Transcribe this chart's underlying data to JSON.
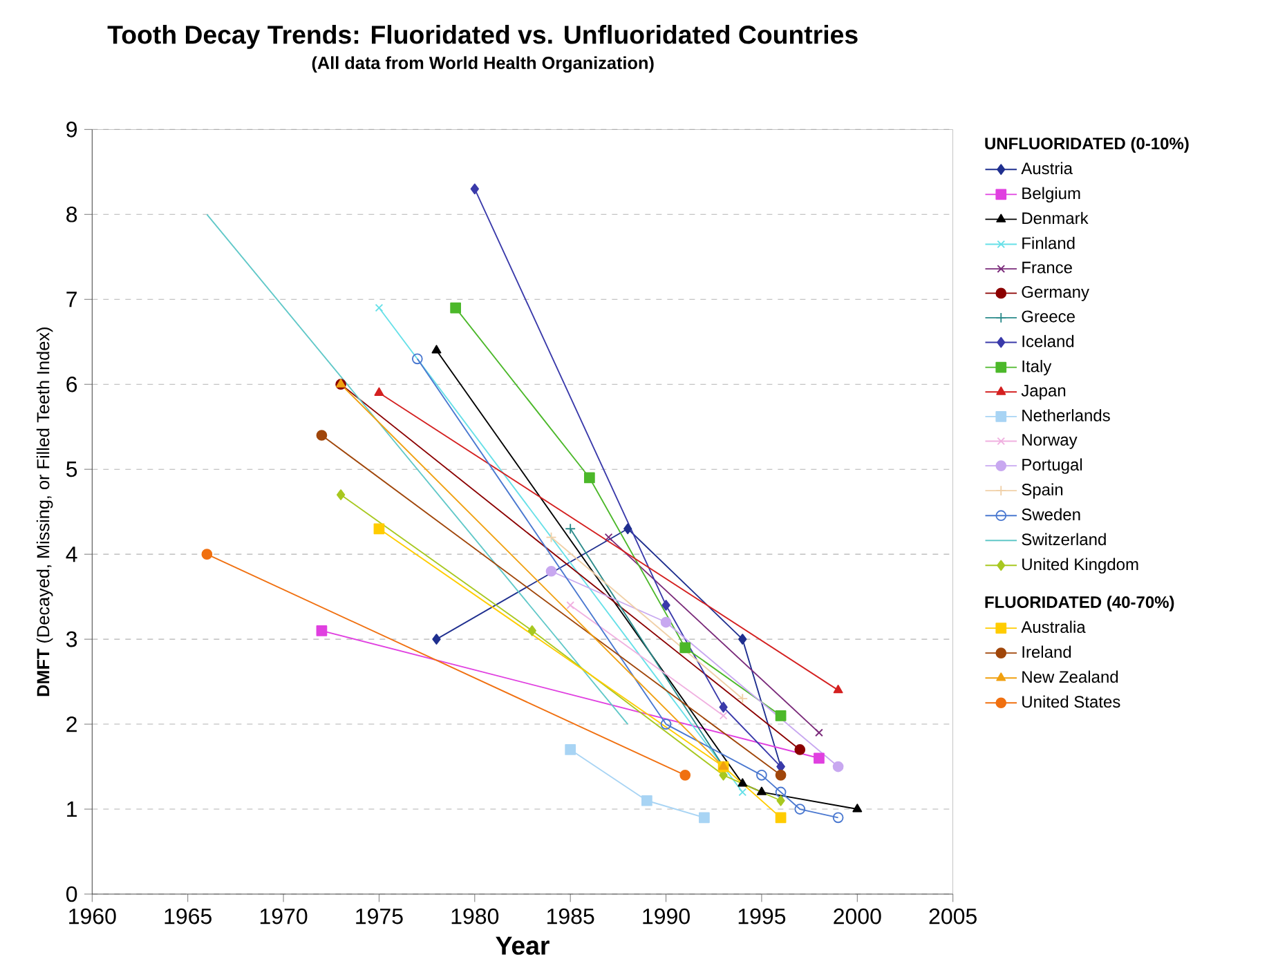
{
  "chart_data": {
    "type": "line",
    "title": "Tooth Decay Trends:  Fluoridated vs. Unfluoridated Countries",
    "subtitle": "(All data from World Health Organization)",
    "xlabel": "Year",
    "ylabel": "**DMFT** (Decayed, Missing, or Filled Teeth Index)",
    "legend_title": "UNFLUORIDATED (0-10%)",
    "annotations": [
      "FLUORIDATED (40-70%)"
    ],
    "xlim": [
      1960,
      2005
    ],
    "ylim": [
      0,
      9
    ],
    "xticks": [
      1960,
      1965,
      1970,
      1975,
      1980,
      1985,
      1990,
      1995,
      2000,
      2005
    ],
    "yticks": [
      0,
      1,
      2,
      3,
      4,
      5,
      6,
      7,
      8,
      9
    ],
    "grid": "y",
    "legend": "right",
    "series": [
      {
        "name": "Austria",
        "color": "#1f2f8f",
        "marker": "diamond",
        "x": [
          1978,
          1988,
          1994,
          1996
        ],
        "values": [
          3.0,
          4.3,
          3.0,
          1.5
        ]
      },
      {
        "name": "Belgium",
        "color": "#e040e0",
        "marker": "square",
        "x": [
          1972,
          1998
        ],
        "values": [
          3.1,
          1.6
        ]
      },
      {
        "name": "Denmark",
        "color": "#000000",
        "marker": "triangle",
        "x": [
          1978,
          1994,
          1995,
          2000
        ],
        "values": [
          6.4,
          1.3,
          1.2,
          1.0
        ]
      },
      {
        "name": "Finland",
        "color": "#66e0e8",
        "marker": "cross",
        "x": [
          1975,
          1994
        ],
        "values": [
          6.9,
          1.2
        ]
      },
      {
        "name": "France",
        "color": "#7a2a7a",
        "marker": "cross",
        "x": [
          1987,
          1998
        ],
        "values": [
          4.2,
          1.9
        ]
      },
      {
        "name": "Germany",
        "color": "#8b0000",
        "marker": "circle",
        "x": [
          1973,
          1997
        ],
        "values": [
          6.0,
          1.7
        ]
      },
      {
        "name": "Greece",
        "color": "#2a8a8a",
        "marker": "plus",
        "x": [
          1985,
          1993
        ],
        "values": [
          4.3,
          1.5
        ]
      },
      {
        "name": "Iceland",
        "color": "#3a3aaa",
        "marker": "diamond",
        "x": [
          1980,
          1990,
          1993,
          1996
        ],
        "values": [
          8.3,
          3.4,
          2.2,
          1.5
        ]
      },
      {
        "name": "Italy",
        "color": "#4cb82a",
        "marker": "square",
        "x": [
          1979,
          1986,
          1991,
          1996
        ],
        "values": [
          6.9,
          4.9,
          2.9,
          2.1
        ]
      },
      {
        "name": "Japan",
        "color": "#d42020",
        "marker": "triangle",
        "x": [
          1975,
          1999
        ],
        "values": [
          5.9,
          2.4
        ]
      },
      {
        "name": "Netherlands",
        "color": "#a8d4f4",
        "marker": "square",
        "x": [
          1985,
          1989,
          1992
        ],
        "values": [
          1.7,
          1.1,
          0.9
        ]
      },
      {
        "name": "Norway",
        "color": "#f0b0e0",
        "marker": "cross",
        "x": [
          1985,
          1993
        ],
        "values": [
          3.4,
          2.1
        ]
      },
      {
        "name": "Portugal",
        "color": "#c8a8f0",
        "marker": "circle",
        "x": [
          1984,
          1990,
          1999
        ],
        "values": [
          3.8,
          3.2,
          1.5
        ]
      },
      {
        "name": "Spain",
        "color": "#f0d0a8",
        "marker": "plus",
        "x": [
          1984,
          1994
        ],
        "values": [
          4.2,
          2.3
        ]
      },
      {
        "name": "Sweden",
        "color": "#4a78d0",
        "marker": "open circle",
        "x": [
          1977,
          1990,
          1995,
          1996,
          1997,
          1999
        ],
        "values": [
          6.3,
          2.0,
          1.4,
          1.2,
          1.0,
          0.9
        ]
      },
      {
        "name": "Switzerland",
        "color": "#60c8c8",
        "marker": "none",
        "x": [
          1966,
          1988
        ],
        "values": [
          8.0,
          2.0
        ]
      },
      {
        "name": "United Kingdom",
        "color": "#a8c820",
        "marker": "diamond",
        "x": [
          1973,
          1983,
          1993,
          1996
        ],
        "values": [
          4.7,
          3.1,
          1.4,
          1.1
        ]
      },
      {
        "name": "Australia",
        "color": "#ffcc00",
        "marker": "square",
        "x": [
          1975,
          1993,
          1996
        ],
        "values": [
          4.3,
          1.5,
          0.9
        ]
      },
      {
        "name": "Ireland",
        "color": "#a0460a",
        "marker": "circle",
        "x": [
          1972,
          1996
        ],
        "values": [
          5.4,
          1.4
        ]
      },
      {
        "name": "New Zealand",
        "color": "#f0a010",
        "marker": "triangle",
        "x": [
          1973,
          1993
        ],
        "values": [
          6.0,
          1.5
        ]
      },
      {
        "name": "United States",
        "color": "#f07010",
        "marker": "circle",
        "x": [
          1966,
          1991
        ],
        "values": [
          4.0,
          1.4
        ]
      }
    ]
  }
}
